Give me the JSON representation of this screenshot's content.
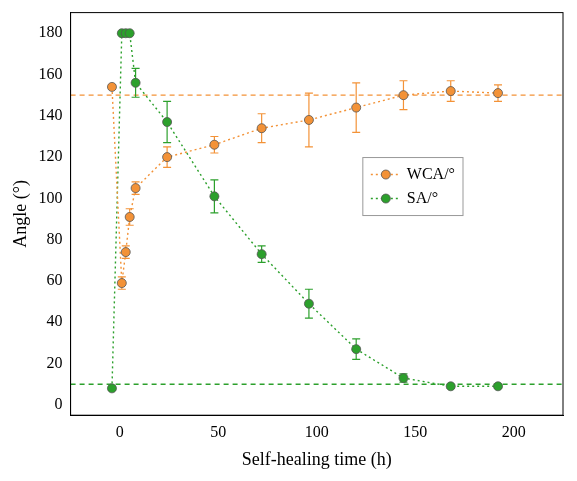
{
  "chart_data": {
    "type": "line",
    "x_label": "Self-healing time (h)",
    "y_label": "Angle (°)",
    "x": [
      -4,
      1,
      3,
      5,
      8,
      24,
      48,
      72,
      96,
      120,
      144,
      168,
      192
    ],
    "series": [
      {
        "name": "WCA/°",
        "color": "#f39237",
        "marker": "circle",
        "line_style": "dotted",
        "values": [
          154,
          59,
          74,
          91,
          105,
          120,
          126,
          134,
          138,
          144,
          150,
          152,
          151
        ],
        "errors": [
          1,
          3,
          3,
          4,
          3,
          5,
          4,
          7,
          13,
          12,
          7,
          5,
          4
        ]
      },
      {
        "name": "SA/°",
        "color": "#2ca02c",
        "marker": "circle",
        "line_style": "dotted",
        "values": [
          8,
          180,
          180,
          180,
          156,
          137,
          101,
          73,
          49,
          27,
          13,
          9,
          9
        ],
        "errors": [
          1,
          0,
          0,
          0,
          7,
          10,
          8,
          4,
          7,
          5,
          2,
          1,
          1
        ]
      }
    ],
    "hlines": [
      {
        "value": 150,
        "color": "#f39237"
      },
      {
        "value": 10,
        "color": "#2ca02c"
      }
    ],
    "xlim": [
      -25,
      225
    ],
    "xticks": [
      0,
      50,
      100,
      150,
      200
    ],
    "ylim": [
      -5,
      190
    ],
    "yticks": [
      0,
      20,
      40,
      60,
      80,
      100,
      120,
      140,
      160,
      180
    ],
    "grid": false,
    "legend": "right"
  }
}
